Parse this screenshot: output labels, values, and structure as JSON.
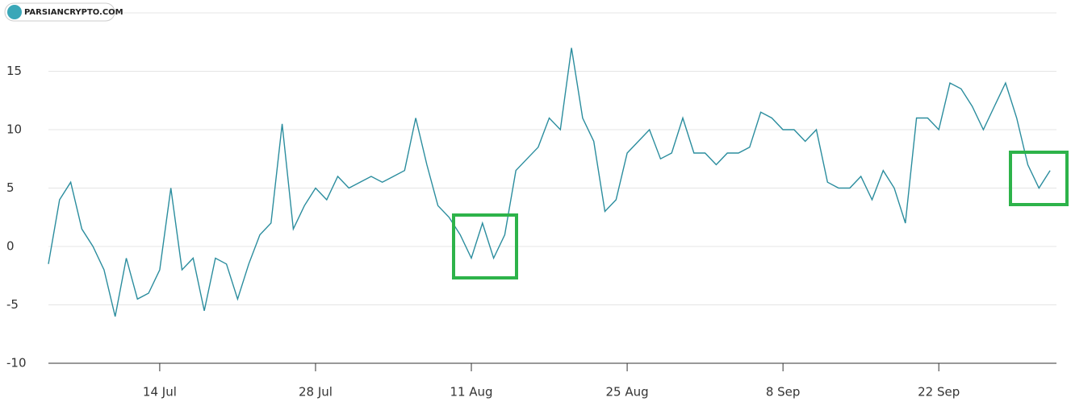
{
  "watermark": "PARSIANCRYPTO.COM",
  "chart_data": {
    "type": "line",
    "categories": [
      null,
      null,
      null,
      null,
      null,
      null,
      null,
      null,
      null,
      null,
      "14 Jul",
      null,
      null,
      null,
      null,
      null,
      null,
      null,
      null,
      null,
      null,
      null,
      null,
      null,
      "28 Jul",
      null,
      null,
      null,
      null,
      null,
      null,
      null,
      null,
      null,
      null,
      null,
      null,
      null,
      "11 Aug",
      null,
      null,
      null,
      null,
      null,
      null,
      null,
      null,
      null,
      null,
      null,
      null,
      null,
      "25 Aug",
      null,
      null,
      null,
      null,
      null,
      null,
      null,
      null,
      null,
      null,
      null,
      null,
      null,
      "8 Sep",
      null,
      null,
      null,
      null,
      null,
      null,
      null,
      null,
      null,
      null,
      null,
      null,
      null,
      "22 Sep",
      null,
      null,
      null,
      null,
      null,
      null,
      null,
      null,
      null,
      null
    ],
    "series": [
      {
        "color": "#2b8d9e",
        "values": [
          -1.5,
          4,
          5.5,
          1.5,
          0,
          -2,
          -6,
          -1,
          -4.5,
          -4,
          -2,
          5,
          -2,
          -1,
          -5.5,
          -1,
          -1.5,
          -4.5,
          -1.5,
          1,
          2,
          10.5,
          1.5,
          3.5,
          5,
          4,
          6,
          5,
          5.5,
          6,
          5.5,
          6,
          6.5,
          11,
          7,
          3.5,
          2.5,
          1,
          -1,
          2,
          -1,
          1,
          6.5,
          7.5,
          8.5,
          11,
          10,
          17,
          11,
          9,
          3,
          4,
          8,
          9,
          10,
          7.5,
          8,
          11,
          8,
          8,
          7,
          8,
          8,
          8.5,
          11.5,
          11,
          10,
          10,
          9,
          10,
          5.5,
          5,
          5,
          6,
          4,
          6.5,
          5,
          2,
          11,
          11,
          10,
          14,
          13.5,
          12,
          10,
          12,
          14,
          11,
          7,
          5,
          6.5
        ]
      }
    ],
    "ylim": [
      -10,
      20
    ],
    "yticks": [
      -10,
      -5,
      0,
      5,
      10,
      15
    ],
    "grid": true
  }
}
